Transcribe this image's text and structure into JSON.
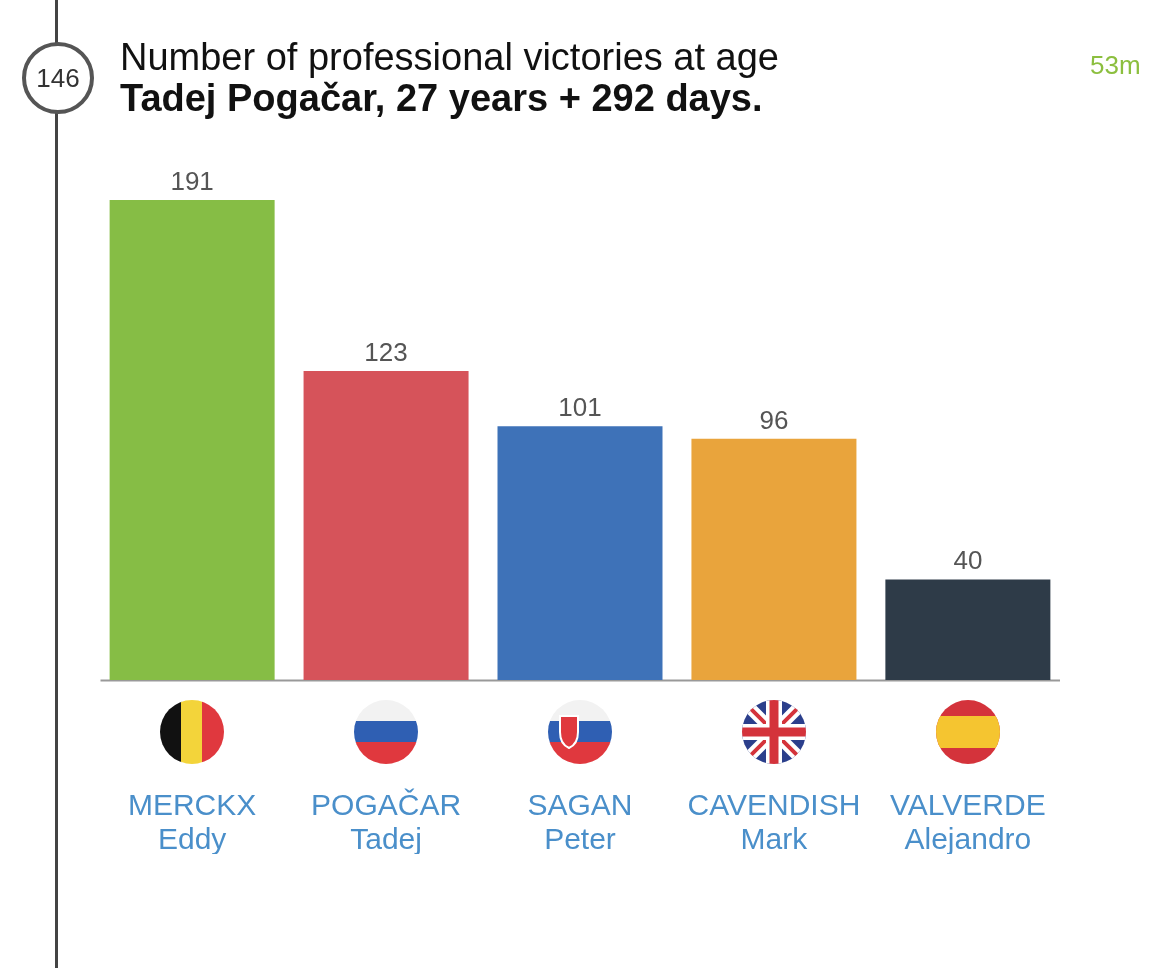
{
  "chart_data": {
    "type": "bar",
    "title": "Number of professional victories at age",
    "subtitle": "Tadej Pogačar, 27 years + 292 days.",
    "categories": [
      "MERCKX\nEddy",
      "POGAČAR\nTadej",
      "SAGAN\nPeter",
      "CAVENDISH\nMark",
      "VALVERDE\nAlejandro"
    ],
    "values": [
      191,
      123,
      101,
      96,
      40
    ],
    "colors": [
      "#86bd45",
      "#d6535a",
      "#3e72b8",
      "#e9a43c",
      "#2e3b48"
    ],
    "data_labels": true,
    "annotations": [
      "146",
      "53m"
    ]
  }
}
